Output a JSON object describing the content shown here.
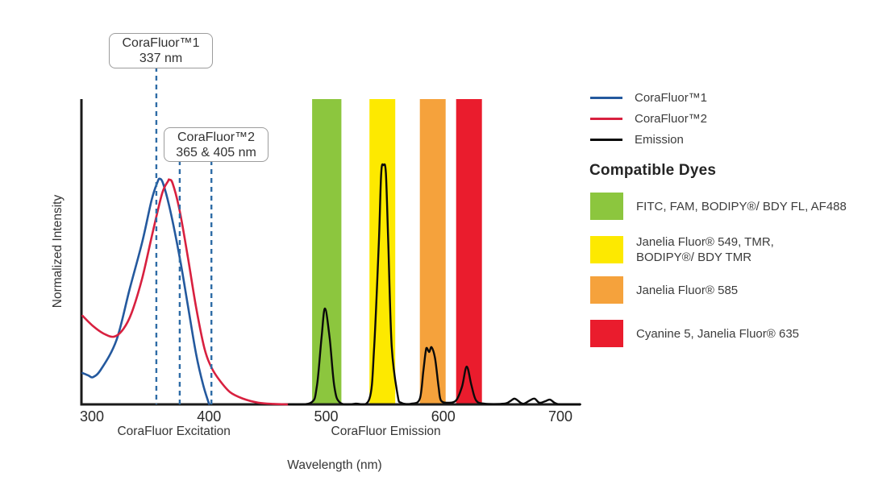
{
  "figure": {
    "callouts": [
      {
        "line1": "CoraFluor™1",
        "line2": "337 nm"
      },
      {
        "line1": "CoraFluor™2",
        "line2": "365 & 405 nm"
      }
    ],
    "legend": {
      "items": [
        {
          "label": "CoraFluor™1",
          "color": "#24599e"
        },
        {
          "label": "CoraFluor™2",
          "color": "#d8203f"
        },
        {
          "label": "Emission",
          "color": "#0a0a0a"
        }
      ]
    },
    "compatible_dyes": {
      "heading": "Compatible Dyes",
      "items": [
        {
          "color": "#8cc63e",
          "lines": [
            "FITC, FAM, BODIPY®/ BDY FL, AF488"
          ]
        },
        {
          "color": "#fde900",
          "lines": [
            "Janelia Fluor® 549, TMR,",
            "BODIPY®/ BDY TMR"
          ]
        },
        {
          "color": "#f5a23c",
          "lines": [
            "Janelia Fluor® 585"
          ]
        },
        {
          "color": "#ea1c2d",
          "lines": [
            "Cyanine 5, Janelia Fluor® 635"
          ]
        }
      ]
    }
  },
  "chart_data": {
    "type": "line",
    "title": "",
    "xlabel": "Wavelength (nm)",
    "ylabel": "Normalized Intensity",
    "xlim": [
      291,
      717
    ],
    "ylim": [
      0,
      1.28
    ],
    "grid": false,
    "legend_position": "right",
    "x_ticks": [
      300,
      400,
      500,
      600,
      700
    ],
    "x_axis_captions": [
      {
        "text": "CoraFluor Excitation",
        "center_nm": 370
      },
      {
        "text": "CoraFluor Emission",
        "center_nm": 551
      }
    ],
    "marker_color": "#2e6ca6",
    "excitation_markers": [
      {
        "x_nm": 355,
        "callout": "CoraFluor™1 337 nm"
      },
      {
        "x_nm": 375,
        "callout": "CoraFluor™2 365 nm"
      },
      {
        "x_nm": 402,
        "callout": "CoraFluor™2 405 nm"
      }
    ],
    "bands": [
      {
        "id": "green",
        "dyes": "FITC, FAM, BODIPY®/ BDY FL, AF488",
        "color": "#8cc63e",
        "from_nm": 488,
        "to_nm": 513
      },
      {
        "id": "yellow",
        "dyes": "Janelia Fluor® 549, TMR, BODIPY®/ BDY TMR",
        "color": "#fde900",
        "from_nm": 537,
        "to_nm": 559
      },
      {
        "id": "orange",
        "dyes": "Janelia Fluor® 585",
        "color": "#f5a23c",
        "from_nm": 580,
        "to_nm": 602
      },
      {
        "id": "red",
        "dyes": "Cyanine 5, Janelia Fluor® 635",
        "color": "#ea1c2d",
        "from_nm": 611,
        "to_nm": 633
      }
    ],
    "series": [
      {
        "id": "corafluor1-excitation",
        "name": "CoraFluor™1",
        "color": "#24599e",
        "width": 2.6,
        "points": [
          [
            292,
            0.131
          ],
          [
            297,
            0.121
          ],
          [
            301,
            0.114
          ],
          [
            308,
            0.148
          ],
          [
            321,
            0.269
          ],
          [
            332,
            0.478
          ],
          [
            343,
            0.68
          ],
          [
            351,
            0.855
          ],
          [
            356,
            0.929
          ],
          [
            358,
            0.943
          ],
          [
            361,
            0.92
          ],
          [
            367,
            0.808
          ],
          [
            375,
            0.613
          ],
          [
            382,
            0.411
          ],
          [
            389,
            0.209
          ],
          [
            395,
            0.081
          ],
          [
            400,
            0.002
          ]
        ]
      },
      {
        "id": "corafluor2-excitation",
        "name": "CoraFluor™2",
        "color": "#d8203f",
        "width": 2.6,
        "points": [
          [
            292,
            0.37
          ],
          [
            301,
            0.327
          ],
          [
            310,
            0.296
          ],
          [
            319,
            0.283
          ],
          [
            327,
            0.316
          ],
          [
            334,
            0.384
          ],
          [
            343,
            0.529
          ],
          [
            352,
            0.721
          ],
          [
            360,
            0.882
          ],
          [
            365,
            0.933
          ],
          [
            366,
            0.939
          ],
          [
            369,
            0.923
          ],
          [
            375,
            0.808
          ],
          [
            382,
            0.613
          ],
          [
            389,
            0.404
          ],
          [
            396,
            0.236
          ],
          [
            402,
            0.155
          ],
          [
            409,
            0.101
          ],
          [
            418,
            0.051
          ],
          [
            429,
            0.024
          ],
          [
            442,
            0.007
          ],
          [
            455,
            0.002
          ],
          [
            468,
            0.0
          ]
        ]
      },
      {
        "id": "emission",
        "name": "Emission",
        "color": "#0a0a0a",
        "width": 2.4,
        "points": [
          [
            468,
            0.0
          ],
          [
            487,
            0.007
          ],
          [
            492,
            0.074
          ],
          [
            496,
            0.276
          ],
          [
            499,
            0.401
          ],
          [
            503,
            0.276
          ],
          [
            507,
            0.074
          ],
          [
            512,
            0.007
          ],
          [
            525,
            0.003
          ],
          [
            537,
            0.024
          ],
          [
            541,
            0.242
          ],
          [
            545,
            0.68
          ],
          [
            547,
            0.966
          ],
          [
            549,
            1.0
          ],
          [
            551,
            0.966
          ],
          [
            553,
            0.68
          ],
          [
            556,
            0.242
          ],
          [
            561,
            0.04
          ],
          [
            564,
            0.007
          ],
          [
            573,
            0.003
          ],
          [
            580,
            0.024
          ],
          [
            583,
            0.141
          ],
          [
            585,
            0.222
          ],
          [
            586,
            0.236
          ],
          [
            588,
            0.219
          ],
          [
            590,
            0.239
          ],
          [
            593,
            0.192
          ],
          [
            596,
            0.074
          ],
          [
            598,
            0.017
          ],
          [
            604,
            0.007
          ],
          [
            611,
            0.017
          ],
          [
            616,
            0.074
          ],
          [
            620,
            0.158
          ],
          [
            624,
            0.081
          ],
          [
            628,
            0.017
          ],
          [
            635,
            0.003
          ],
          [
            652,
            0.003
          ],
          [
            657,
            0.013
          ],
          [
            661,
            0.024
          ],
          [
            666,
            0.007
          ],
          [
            669,
            0.003
          ],
          [
            674,
            0.017
          ],
          [
            678,
            0.024
          ],
          [
            682,
            0.007
          ],
          [
            687,
            0.013
          ],
          [
            691,
            0.02
          ],
          [
            695,
            0.007
          ],
          [
            700,
            0.0
          ],
          [
            717,
            0.0
          ]
        ]
      }
    ]
  }
}
